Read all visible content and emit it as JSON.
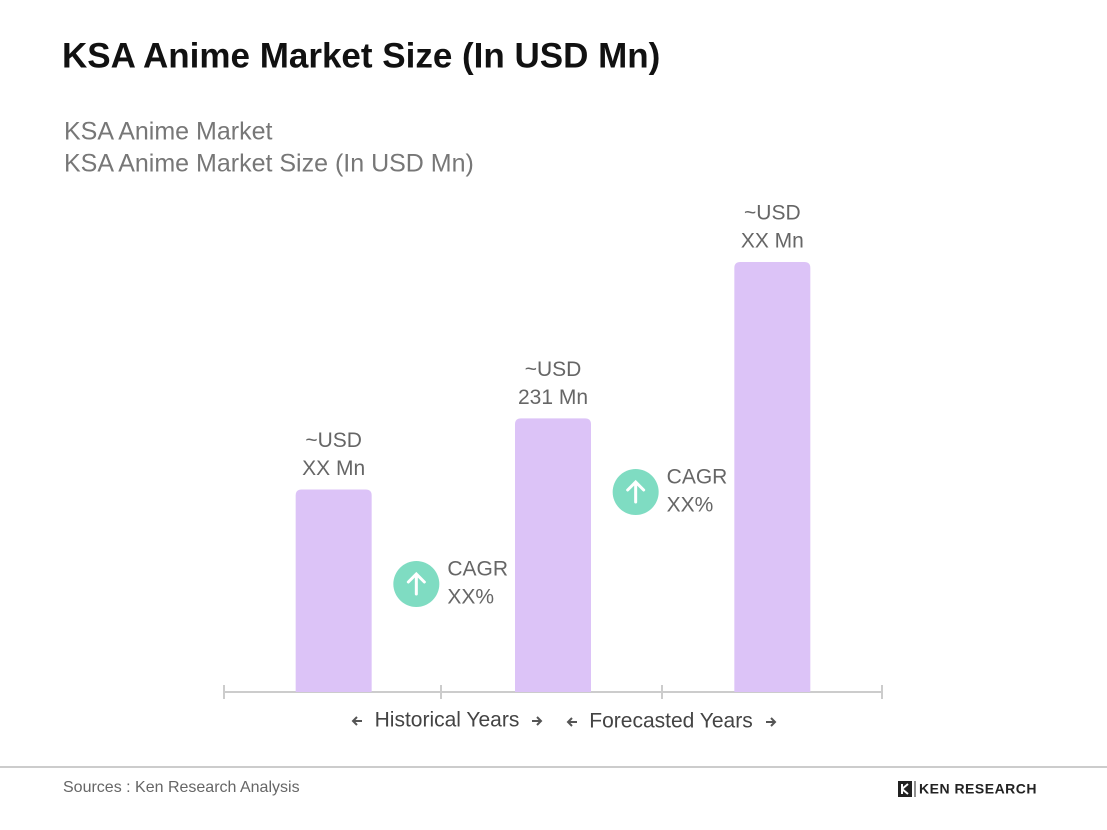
{
  "header": {
    "title": "KSA Anime Market Size (In USD Mn)"
  },
  "chart_data": {
    "type": "bar",
    "title": "KSA Anime Market",
    "subtitle": "KSA Anime Market Size (In USD Mn)",
    "categories": [
      null,
      null,
      null
    ],
    "values": [
      171,
      231,
      363
    ],
    "value_labels": [
      [
        "~USD",
        "XX Mn"
      ],
      [
        "~USD",
        "231 Mn"
      ],
      [
        "~USD",
        "XX Mn"
      ]
    ],
    "color": "#dcc3f7",
    "annotations": [
      [
        "CAGR",
        "XX%"
      ],
      [
        "CAGR",
        "XX%"
      ]
    ],
    "annotation_color": "#7fdcc2",
    "periods": [
      "Historical Years",
      "Forecasted Years"
    ]
  },
  "footer": {
    "source": "Sources : Ken Research Analysis",
    "logo": "KEN RESEARCH"
  }
}
